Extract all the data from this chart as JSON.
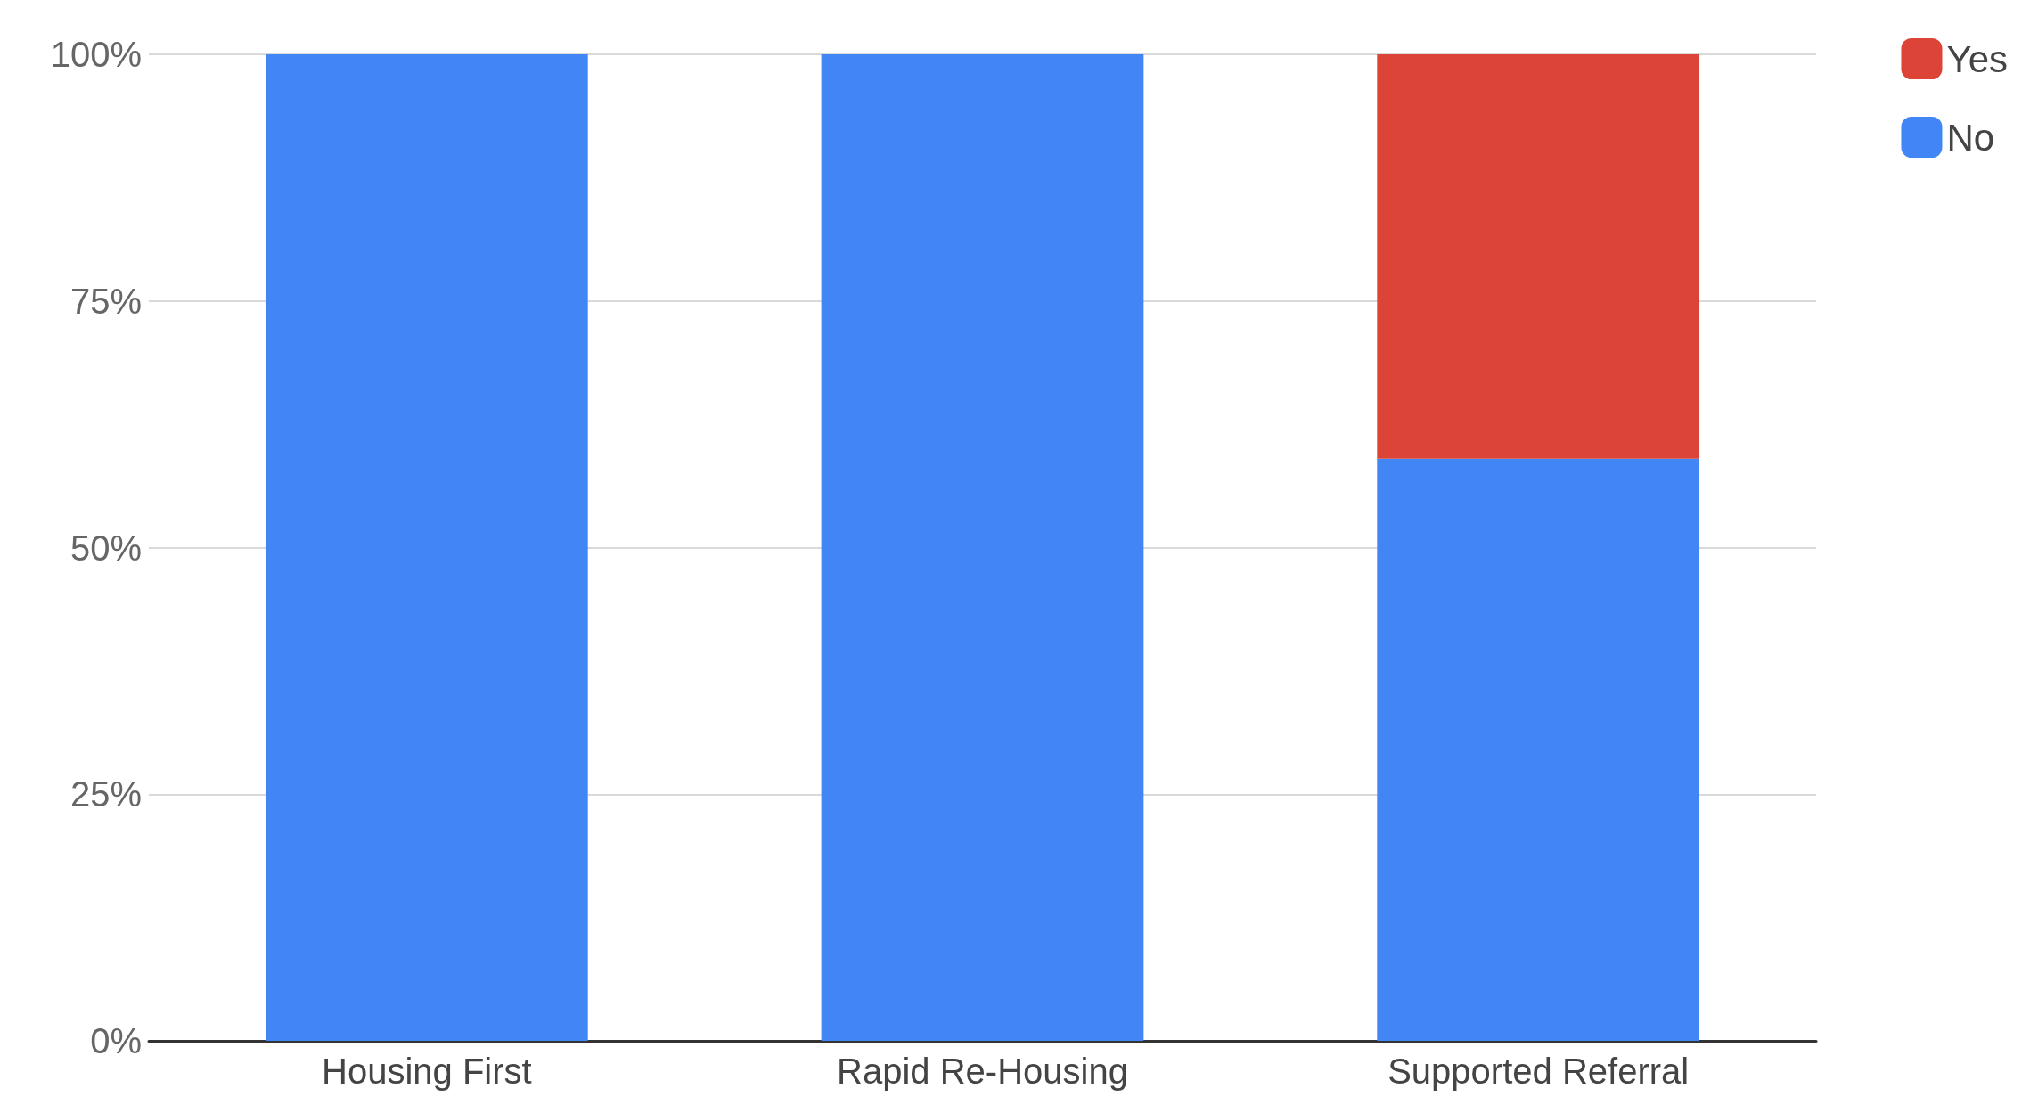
{
  "chart_data": {
    "type": "bar",
    "stacked": true,
    "categories": [
      "Housing First",
      "Rapid Re-Housing",
      "Supported Referral"
    ],
    "series": [
      {
        "name": "No",
        "color": "#4285f4",
        "values": [
          100,
          100,
          59
        ]
      },
      {
        "name": "Yes",
        "color": "#db4437",
        "values": [
          0,
          0,
          41
        ]
      }
    ],
    "ylim": [
      0,
      100
    ],
    "yticks": [
      {
        "value": 0,
        "label": "0%"
      },
      {
        "value": 25,
        "label": "25%"
      },
      {
        "value": 50,
        "label": "50%"
      },
      {
        "value": 75,
        "label": "75%"
      },
      {
        "value": 100,
        "label": "100%"
      }
    ],
    "grid": "y",
    "legend": "top right"
  }
}
